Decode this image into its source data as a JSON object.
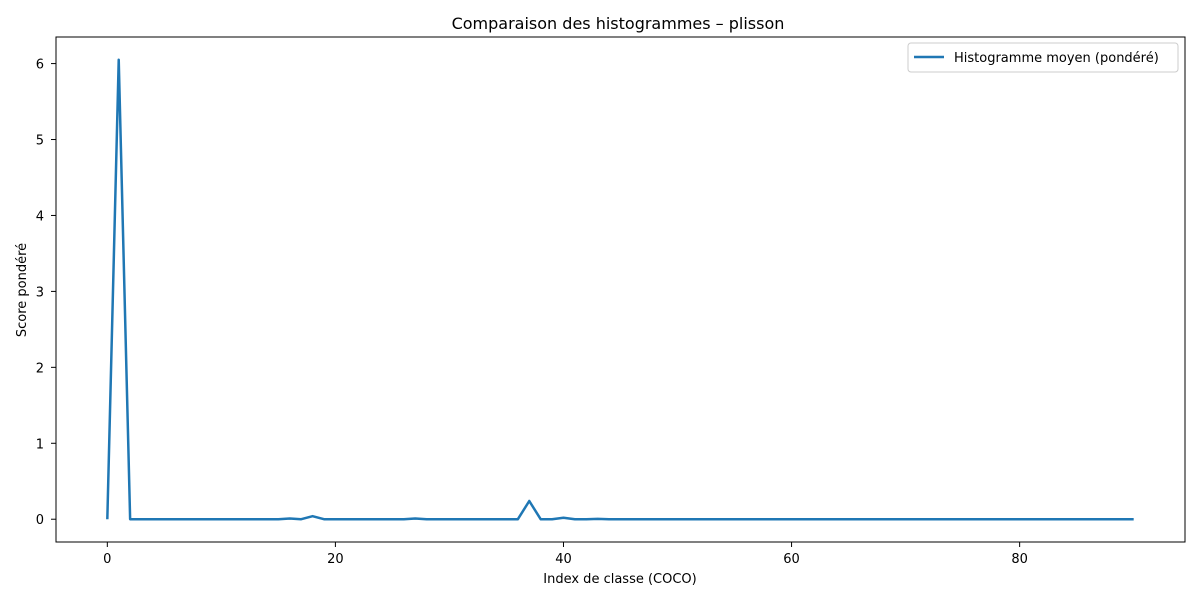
{
  "chart_data": {
    "type": "line",
    "title": "Comparaison des histogrammes – plisson",
    "xlabel": "Index de classe (COCO)",
    "ylabel": "Score pondéré",
    "xlim": [
      -4.5,
      94.5
    ],
    "ylim": [
      -0.3,
      6.35
    ],
    "xticks": [
      0,
      20,
      40,
      60,
      80
    ],
    "yticks": [
      0,
      1,
      2,
      3,
      4,
      5,
      6
    ],
    "grid": false,
    "legend_position": "top-right",
    "series": [
      {
        "name": "Histogramme moyen (pondéré)",
        "color": "#1f77b4",
        "x": [
          0,
          1,
          2,
          3,
          4,
          5,
          6,
          7,
          8,
          9,
          10,
          11,
          12,
          13,
          14,
          15,
          16,
          17,
          18,
          19,
          20,
          21,
          22,
          23,
          24,
          25,
          26,
          27,
          28,
          29,
          30,
          31,
          32,
          33,
          34,
          35,
          36,
          37,
          38,
          39,
          40,
          41,
          42,
          43,
          44,
          45,
          46,
          47,
          48,
          49,
          50,
          51,
          52,
          53,
          54,
          55,
          56,
          57,
          58,
          59,
          60,
          61,
          62,
          63,
          64,
          65,
          66,
          67,
          68,
          69,
          70,
          71,
          72,
          73,
          74,
          75,
          76,
          77,
          78,
          79,
          80,
          81,
          82,
          83,
          84,
          85,
          86,
          87,
          88,
          89,
          90
        ],
        "y": [
          0,
          6.05,
          0,
          0,
          0,
          0,
          0,
          0,
          0,
          0,
          0,
          0,
          0,
          0,
          0,
          0,
          0.01,
          0,
          0.04,
          0,
          0,
          0,
          0,
          0,
          0,
          0,
          0,
          0.01,
          0,
          0,
          0,
          0,
          0,
          0,
          0,
          0,
          0,
          0.24,
          0,
          0,
          0.02,
          0,
          0,
          0.005,
          0,
          0,
          0,
          0,
          0,
          0,
          0,
          0,
          0,
          0,
          0,
          0,
          0,
          0,
          0,
          0,
          0,
          0,
          0,
          0,
          0,
          0,
          0,
          0,
          0,
          0,
          0,
          0,
          0,
          0,
          0,
          0,
          0,
          0,
          0,
          0,
          0,
          0,
          0,
          0,
          0,
          0,
          0,
          0,
          0,
          0,
          0
        ]
      }
    ]
  }
}
